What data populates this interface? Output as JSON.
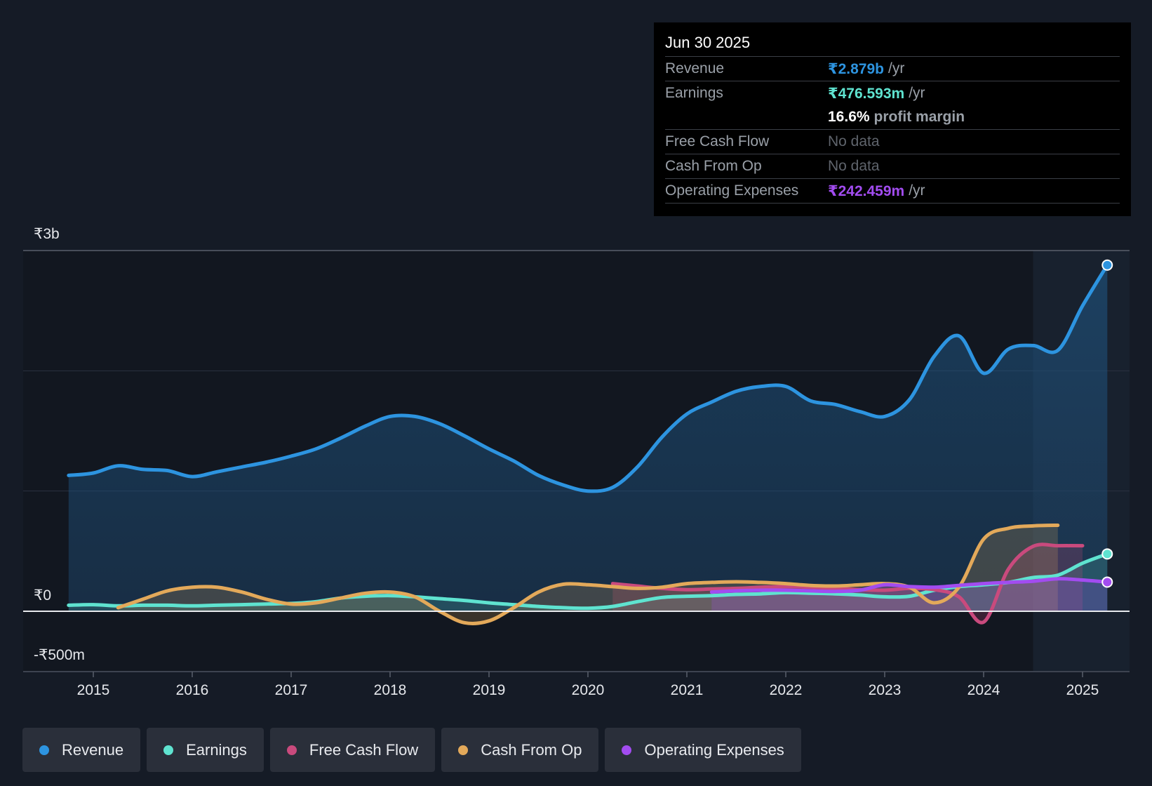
{
  "tooltip": {
    "date": "Jun 30 2025",
    "revenue": {
      "label": "Revenue",
      "value": "₹2.879b",
      "unit": "/yr"
    },
    "earnings": {
      "label": "Earnings",
      "value": "₹476.593m",
      "unit": "/yr"
    },
    "profit_margin": {
      "value": "16.6%",
      "label": "profit margin"
    },
    "fcf": {
      "label": "Free Cash Flow",
      "value": "No data"
    },
    "cfo": {
      "label": "Cash From Op",
      "value": "No data"
    },
    "opex": {
      "label": "Operating Expenses",
      "value": "₹242.459m",
      "unit": "/yr"
    }
  },
  "legend": [
    {
      "label": "Revenue",
      "color": "#2d94e0"
    },
    {
      "label": "Earnings",
      "color": "#5fe3d0"
    },
    {
      "label": "Free Cash Flow",
      "color": "#c94a7d"
    },
    {
      "label": "Cash From Op",
      "color": "#e3a95a"
    },
    {
      "label": "Operating Expenses",
      "color": "#a24cf0"
    }
  ],
  "chart_data": {
    "type": "line",
    "y_axis_labels": [
      "₹3b",
      "₹0",
      "-₹500m"
    ],
    "ylim": [
      -500,
      3000
    ],
    "xlim": [
      2014.25,
      2025.5
    ],
    "x_ticks": [
      2015,
      2016,
      2017,
      2018,
      2019,
      2020,
      2021,
      2022,
      2023,
      2024,
      2025
    ],
    "x_tick_labels": [
      "2015",
      "2016",
      "2017",
      "2018",
      "2019",
      "2020",
      "2021",
      "2022",
      "2023",
      "2024",
      "2025"
    ],
    "forecast_start": 2024.5,
    "series": [
      {
        "name": "Revenue",
        "color": "#2d94e0",
        "points": [
          [
            2014.75,
            1130
          ],
          [
            2015.0,
            1150
          ],
          [
            2015.25,
            1210
          ],
          [
            2015.5,
            1180
          ],
          [
            2015.75,
            1170
          ],
          [
            2016.0,
            1120
          ],
          [
            2016.25,
            1160
          ],
          [
            2016.5,
            1200
          ],
          [
            2016.75,
            1240
          ],
          [
            2017.0,
            1290
          ],
          [
            2017.25,
            1350
          ],
          [
            2017.5,
            1440
          ],
          [
            2017.75,
            1540
          ],
          [
            2018.0,
            1620
          ],
          [
            2018.25,
            1620
          ],
          [
            2018.5,
            1560
          ],
          [
            2018.75,
            1460
          ],
          [
            2019.0,
            1350
          ],
          [
            2019.25,
            1250
          ],
          [
            2019.5,
            1130
          ],
          [
            2019.75,
            1050
          ],
          [
            2020.0,
            1000
          ],
          [
            2020.25,
            1030
          ],
          [
            2020.5,
            1200
          ],
          [
            2020.75,
            1450
          ],
          [
            2021.0,
            1640
          ],
          [
            2021.25,
            1740
          ],
          [
            2021.5,
            1830
          ],
          [
            2021.75,
            1870
          ],
          [
            2022.0,
            1870
          ],
          [
            2022.25,
            1750
          ],
          [
            2022.5,
            1720
          ],
          [
            2022.75,
            1660
          ],
          [
            2023.0,
            1620
          ],
          [
            2023.25,
            1760
          ],
          [
            2023.5,
            2120
          ],
          [
            2023.75,
            2290
          ],
          [
            2024.0,
            1980
          ],
          [
            2024.25,
            2180
          ],
          [
            2024.5,
            2210
          ],
          [
            2024.75,
            2170
          ],
          [
            2025.0,
            2540
          ],
          [
            2025.25,
            2879
          ]
        ]
      },
      {
        "name": "Earnings",
        "color": "#5fe3d0",
        "points": [
          [
            2014.75,
            50
          ],
          [
            2015.0,
            55
          ],
          [
            2015.25,
            45
          ],
          [
            2015.5,
            50
          ],
          [
            2015.75,
            50
          ],
          [
            2016.0,
            45
          ],
          [
            2016.25,
            50
          ],
          [
            2016.5,
            55
          ],
          [
            2016.75,
            60
          ],
          [
            2017.0,
            65
          ],
          [
            2017.25,
            80
          ],
          [
            2017.5,
            110
          ],
          [
            2017.75,
            125
          ],
          [
            2018.0,
            130
          ],
          [
            2018.25,
            120
          ],
          [
            2018.5,
            105
          ],
          [
            2018.75,
            90
          ],
          [
            2019.0,
            70
          ],
          [
            2019.25,
            55
          ],
          [
            2019.5,
            40
          ],
          [
            2019.75,
            30
          ],
          [
            2020.0,
            25
          ],
          [
            2020.25,
            40
          ],
          [
            2020.5,
            80
          ],
          [
            2020.75,
            115
          ],
          [
            2021.0,
            125
          ],
          [
            2021.25,
            130
          ],
          [
            2021.5,
            140
          ],
          [
            2021.75,
            145
          ],
          [
            2022.0,
            155
          ],
          [
            2022.25,
            150
          ],
          [
            2022.5,
            145
          ],
          [
            2022.75,
            135
          ],
          [
            2023.0,
            120
          ],
          [
            2023.25,
            125
          ],
          [
            2023.5,
            175
          ],
          [
            2023.75,
            205
          ],
          [
            2024.0,
            220
          ],
          [
            2024.25,
            240
          ],
          [
            2024.5,
            280
          ],
          [
            2024.75,
            300
          ],
          [
            2025.0,
            400
          ],
          [
            2025.25,
            476.593
          ]
        ]
      },
      {
        "name": "Free Cash Flow",
        "color": "#c94a7d",
        "points": [
          [
            2020.25,
            230
          ],
          [
            2020.5,
            210
          ],
          [
            2020.75,
            190
          ],
          [
            2021.0,
            180
          ],
          [
            2021.25,
            185
          ],
          [
            2021.5,
            190
          ],
          [
            2021.75,
            200
          ],
          [
            2022.0,
            205
          ],
          [
            2022.25,
            200
          ],
          [
            2022.5,
            190
          ],
          [
            2022.75,
            180
          ],
          [
            2023.0,
            175
          ],
          [
            2023.25,
            190
          ],
          [
            2023.5,
            180
          ],
          [
            2023.75,
            120
          ],
          [
            2024.0,
            -90
          ],
          [
            2024.25,
            350
          ],
          [
            2024.5,
            540
          ],
          [
            2024.75,
            545
          ],
          [
            2025.0,
            545
          ]
        ]
      },
      {
        "name": "Cash From Op",
        "color": "#e3a95a",
        "points": [
          [
            2015.25,
            30
          ],
          [
            2015.5,
            100
          ],
          [
            2015.75,
            170
          ],
          [
            2016.0,
            200
          ],
          [
            2016.25,
            200
          ],
          [
            2016.5,
            160
          ],
          [
            2016.75,
            100
          ],
          [
            2017.0,
            60
          ],
          [
            2017.25,
            70
          ],
          [
            2017.5,
            110
          ],
          [
            2017.75,
            150
          ],
          [
            2018.0,
            160
          ],
          [
            2018.25,
            120
          ],
          [
            2018.5,
            0
          ],
          [
            2018.75,
            -95
          ],
          [
            2019.0,
            -80
          ],
          [
            2019.25,
            30
          ],
          [
            2019.5,
            160
          ],
          [
            2019.75,
            225
          ],
          [
            2020.0,
            220
          ],
          [
            2020.25,
            205
          ],
          [
            2020.5,
            190
          ],
          [
            2020.75,
            200
          ],
          [
            2021.0,
            230
          ],
          [
            2021.25,
            240
          ],
          [
            2021.5,
            245
          ],
          [
            2021.75,
            240
          ],
          [
            2022.0,
            230
          ],
          [
            2022.25,
            215
          ],
          [
            2022.5,
            210
          ],
          [
            2022.75,
            220
          ],
          [
            2023.0,
            230
          ],
          [
            2023.25,
            200
          ],
          [
            2023.5,
            70
          ],
          [
            2023.75,
            200
          ],
          [
            2024.0,
            600
          ],
          [
            2024.25,
            690
          ],
          [
            2024.5,
            710
          ],
          [
            2024.75,
            715
          ]
        ]
      },
      {
        "name": "Operating Expenses",
        "color": "#a24cf0",
        "points": [
          [
            2021.25,
            160
          ],
          [
            2021.5,
            170
          ],
          [
            2021.75,
            175
          ],
          [
            2022.0,
            175
          ],
          [
            2022.25,
            170
          ],
          [
            2022.5,
            165
          ],
          [
            2022.75,
            175
          ],
          [
            2023.0,
            220
          ],
          [
            2023.25,
            205
          ],
          [
            2023.5,
            200
          ],
          [
            2023.75,
            215
          ],
          [
            2024.0,
            230
          ],
          [
            2024.25,
            240
          ],
          [
            2024.5,
            250
          ],
          [
            2024.75,
            270
          ],
          [
            2025.0,
            260
          ],
          [
            2025.25,
            242.459
          ]
        ]
      }
    ]
  }
}
